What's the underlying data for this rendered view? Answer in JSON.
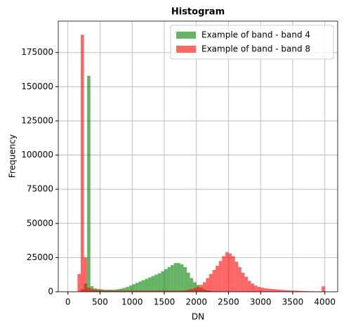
{
  "chart_data": {
    "type": "histogram",
    "title": "Histogram",
    "xlabel": "DN",
    "ylabel": "Frequency",
    "bins": [
      100,
      150,
      200,
      250,
      300,
      350,
      400,
      450,
      500,
      550,
      600,
      650,
      700,
      750,
      800,
      850,
      900,
      950,
      1000,
      1050,
      1100,
      1150,
      1200,
      1250,
      1300,
      1350,
      1400,
      1450,
      1500,
      1550,
      1600,
      1650,
      1700,
      1750,
      1800,
      1850,
      1900,
      1950,
      2000,
      2050,
      2100,
      2150,
      2200,
      2250,
      2300,
      2350,
      2400,
      2450,
      2500,
      2550,
      2600,
      2650,
      2700,
      2750,
      2800,
      2850,
      2900,
      2950,
      3000,
      3050,
      3100,
      3150,
      3200,
      3250,
      3300,
      3350,
      3400,
      3450,
      3500,
      3550,
      3600,
      3650,
      3700,
      3750,
      3800,
      3850,
      3900,
      3950,
      4000
    ],
    "series": [
      {
        "name": "Example of band - band 4",
        "color": "#008000",
        "values": [
          0,
          0,
          2000,
          6000,
          158000,
          4000,
          2500,
          2000,
          1800,
          1500,
          1500,
          1500,
          1500,
          1800,
          2200,
          2800,
          3500,
          4500,
          5500,
          6500,
          7500,
          8500,
          9500,
          10500,
          11500,
          12500,
          13500,
          15000,
          16500,
          18000,
          19500,
          21000,
          21000,
          20000,
          18000,
          14000,
          10000,
          7000,
          5000,
          3000,
          1800,
          1000,
          600,
          300,
          150,
          0,
          0,
          0,
          0,
          0,
          0,
          0,
          0,
          0,
          0,
          0,
          0,
          0,
          0,
          0,
          0,
          0,
          0,
          0,
          0,
          0,
          0,
          0,
          0,
          0,
          0,
          0,
          0,
          0,
          0,
          0,
          0,
          0
        ]
      },
      {
        "name": "Example of band - band 8",
        "color": "#ff0000",
        "values": [
          0,
          13000,
          188000,
          25000,
          3000,
          2000,
          1500,
          1200,
          1000,
          800,
          800,
          800,
          800,
          800,
          800,
          800,
          800,
          800,
          800,
          800,
          800,
          800,
          800,
          800,
          800,
          800,
          800,
          800,
          800,
          800,
          800,
          800,
          800,
          800,
          1000,
          1500,
          2000,
          2500,
          3500,
          5000,
          7000,
          10000,
          13000,
          16000,
          19000,
          22500,
          26000,
          29000,
          28000,
          26000,
          22000,
          18000,
          14000,
          11000,
          8000,
          6000,
          4500,
          3500,
          3000,
          2500,
          2200,
          2000,
          1800,
          1600,
          1400,
          1200,
          1000,
          900,
          800,
          700,
          600,
          500,
          400,
          350,
          300,
          250,
          200,
          4000
        ]
      }
    ],
    "alpha": 0.6,
    "xlim": [
      -150,
      4200
    ],
    "ylim": [
      0,
      198000
    ],
    "xticks": [
      0,
      500,
      1000,
      1500,
      2000,
      2500,
      3000,
      3500,
      4000
    ],
    "yticks": [
      0,
      25000,
      50000,
      75000,
      100000,
      125000,
      150000,
      175000
    ],
    "grid": true,
    "legend": "upper right"
  }
}
